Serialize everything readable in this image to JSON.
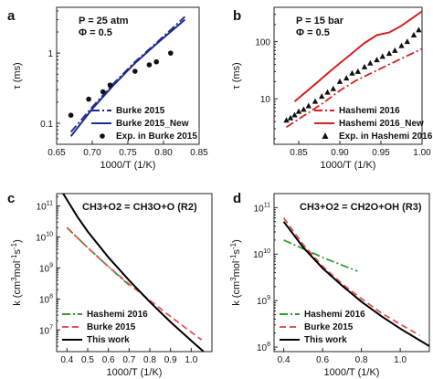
{
  "chart_data": [
    {
      "panel": "a",
      "type": "line",
      "annotation": [
        "P = 25 atm",
        "Φ = 0.5"
      ],
      "xlabel": "1000/T (1/K)",
      "ylabel": "τ (ms)",
      "xlim": [
        0.65,
        0.85
      ],
      "ylim": [
        0.05,
        4.5
      ],
      "yscale": "log",
      "xticks": [
        "0.65",
        "0.70",
        "0.75",
        "0.80",
        "0.85"
      ],
      "yticks": [
        "0.1",
        "1"
      ],
      "legend_position": "bottom-right",
      "series": [
        {
          "name": "Burke 2015",
          "style": "dash-dot",
          "color": "#1f2a8c",
          "x": [
            0.67,
            0.7,
            0.73,
            0.76,
            0.79,
            0.83
          ],
          "y": [
            0.075,
            0.17,
            0.37,
            0.75,
            1.4,
            3.3
          ]
        },
        {
          "name": "Burke 2015_New",
          "style": "solid",
          "color": "#1f2a8c",
          "x": [
            0.67,
            0.7,
            0.73,
            0.76,
            0.79,
            0.83
          ],
          "y": [
            0.065,
            0.16,
            0.35,
            0.72,
            1.35,
            3.0
          ]
        },
        {
          "name": "Exp. in Burke 2015",
          "style": "circle",
          "color": "#111111",
          "x": [
            0.67,
            0.695,
            0.715,
            0.725,
            0.76,
            0.78,
            0.79,
            0.81
          ],
          "y": [
            0.13,
            0.22,
            0.28,
            0.35,
            0.55,
            0.68,
            0.75,
            1.0
          ]
        }
      ]
    },
    {
      "panel": "b",
      "type": "line",
      "annotation": [
        "P = 15 bar",
        "Φ = 0.5"
      ],
      "xlabel": "1000/T (1/K)",
      "ylabel": "τ (ms)",
      "xlim": [
        0.82,
        1.0
      ],
      "ylim": [
        1.6,
        400
      ],
      "yscale": "log",
      "xticks": [
        "0.85",
        "0.90",
        "0.95",
        "1.00"
      ],
      "yticks": [
        "10",
        "100"
      ],
      "legend_position": "bottom-right",
      "series": [
        {
          "name": "Hashemi 2016",
          "style": "dash-dot",
          "color": "#d42020",
          "x": [
            0.835,
            0.86,
            0.88,
            0.9,
            0.92,
            0.94,
            0.96,
            0.98,
            1.0
          ],
          "y": [
            3.2,
            5.5,
            8.5,
            14,
            21,
            29,
            40,
            55,
            75
          ]
        },
        {
          "name": "Hashemi 2016_New",
          "style": "solid",
          "color": "#d42020",
          "x": [
            0.845,
            0.87,
            0.89,
            0.91,
            0.93,
            0.945,
            0.96,
            0.975,
            0.99,
            1.0
          ],
          "y": [
            9,
            18,
            32,
            55,
            95,
            130,
            145,
            190,
            270,
            340
          ]
        },
        {
          "name": "Exp. in Hashemi 2016",
          "style": "triangle",
          "color": "#111111",
          "x": [
            0.835,
            0.84,
            0.845,
            0.85,
            0.856,
            0.862,
            0.87,
            0.878,
            0.885,
            0.892,
            0.9,
            0.908,
            0.915,
            0.922,
            0.93,
            0.937,
            0.945,
            0.952,
            0.96,
            0.967,
            0.975,
            0.982,
            0.99,
            0.996
          ],
          "y": [
            4.2,
            4.6,
            5.2,
            6.0,
            6.5,
            7.5,
            9.0,
            11,
            13,
            15,
            20,
            23,
            28,
            30,
            36,
            42,
            48,
            55,
            62,
            70,
            85,
            100,
            130,
            160
          ]
        }
      ]
    },
    {
      "panel": "c",
      "type": "line",
      "title": "CH3+O2 = CH3O+O (R2)",
      "xlabel": "1000/T (1/K)",
      "ylabel": "k (cm3mol-1s-1)",
      "xlim": [
        0.35,
        1.1
      ],
      "ylim": [
        2000000,
        250000000000
      ],
      "yscale": "log",
      "xticks": [
        "0.4",
        "0.5",
        "0.6",
        "0.7",
        "0.8",
        "0.9",
        "1.0"
      ],
      "yticks": [
        "10^7",
        "10^8",
        "10^9",
        "10^10",
        "10^11"
      ],
      "legend_position": "bottom-left",
      "series": [
        {
          "name": "Hashemi 2016",
          "style": "dash-dot",
          "color": "#2e9d2e",
          "x": [
            0.4,
            0.5,
            0.6,
            0.7
          ],
          "y": [
            20000000000,
            4500000000,
            1100000000,
            280000000
          ]
        },
        {
          "name": "Burke 2015",
          "style": "dashed",
          "color": "#e85050",
          "x": [
            0.4,
            0.5,
            0.6,
            0.7,
            0.8,
            0.9,
            1.0,
            1.05
          ],
          "y": [
            20000000000,
            4500000000,
            1100000000,
            300000000,
            90000000,
            27000000,
            8500000,
            4800000
          ]
        },
        {
          "name": "This work",
          "style": "solid",
          "color": "#000000",
          "x": [
            0.38,
            0.45,
            0.5,
            0.6,
            0.7,
            0.8,
            0.9,
            1.0,
            1.06
          ],
          "y": [
            260000000000,
            45000000000,
            15000000000,
            2200000000,
            400000000,
            80000000,
            18000000,
            4500000,
            2000000
          ]
        }
      ]
    },
    {
      "panel": "d",
      "type": "line",
      "title": "CH3+O2 = CH2O+OH (R3)",
      "xlabel": "1000/T (1/K)",
      "ylabel": "k (cm3mol-1s-1)",
      "xlim": [
        0.35,
        1.15
      ],
      "ylim": [
        80000000,
        200000000000
      ],
      "yscale": "log",
      "xticks": [
        "0.4",
        "0.6",
        "0.8",
        "1.0"
      ],
      "yticks": [
        "10^8",
        "10^9",
        "10^10",
        "10^11"
      ],
      "legend_position": "bottom-left",
      "series": [
        {
          "name": "Hashemi 2016",
          "style": "dash-dot",
          "color": "#2e9d2e",
          "x": [
            0.4,
            0.5,
            0.6,
            0.7,
            0.78
          ],
          "y": [
            20000000000,
            13000000000,
            8500000000,
            5800000000,
            4300000000
          ]
        },
        {
          "name": "Burke 2015",
          "style": "dashed",
          "color": "#e85050",
          "x": [
            0.4,
            0.5,
            0.6,
            0.7,
            0.8,
            0.9,
            1.0,
            1.1
          ],
          "y": [
            60000000000,
            16000000000,
            5500000000,
            2300000000,
            1100000000,
            550000000,
            310000000,
            180000000
          ]
        },
        {
          "name": "This work",
          "style": "solid",
          "color": "#000000",
          "x": [
            0.4,
            0.5,
            0.6,
            0.7,
            0.8,
            0.9,
            1.0,
            1.1,
            1.15
          ],
          "y": [
            50000000000,
            14000000000,
            5000000000,
            2100000000,
            950000000,
            470000000,
            250000000,
            140000000,
            105000000
          ]
        }
      ]
    }
  ]
}
